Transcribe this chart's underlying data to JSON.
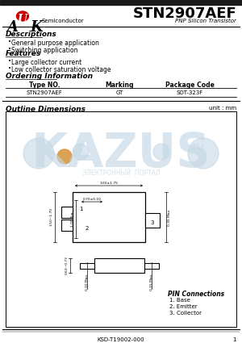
{
  "title": "STN2907AEF",
  "subtitle": "PNP Silicon Transistor",
  "logo_A": "A",
  "logo_U": "U",
  "logo_K": "K",
  "logo_semi": "Semiconductor",
  "desc_title": "Descriptions",
  "desc_items": [
    "General purpose application",
    "Switching application"
  ],
  "feat_title": "Features",
  "feat_items": [
    "Large collector current",
    "Low collector saturation voltage"
  ],
  "ord_title": "Ordering Information",
  "ord_headers": [
    "Type NO.",
    "Marking",
    "Package Code"
  ],
  "ord_row": [
    "STN2907AEF",
    "GT",
    "SOT-323F"
  ],
  "outline_title": "Outline Dimensions",
  "unit_text": "unit : mm",
  "pin_title": "PIN Connections",
  "pin_items": [
    "1. Base",
    "2. Emitter",
    "3. Collector"
  ],
  "footer": "KSD-T19002-000",
  "page": "1",
  "bg": "#ffffff",
  "black": "#000000",
  "bar_color": "#1a1a1a",
  "line_color": "#666666",
  "red_oval": "#cc0000",
  "wm_color": "#c5d8e5",
  "wm_orange": "#d4923a",
  "dim_top_label": "1.60±1.75",
  "dim_inner_label": "0.70±0.10",
  "dim_left_label": "1.50~1.70",
  "dim_inner_h_label": "1.00 Typ.",
  "dim_right_label": "0.35 Max.",
  "dim_sv_h_label": "0.63~0.73",
  "dim_sv_l1": "0.10 Max.",
  "dim_sv_l2": "0.15 Max."
}
